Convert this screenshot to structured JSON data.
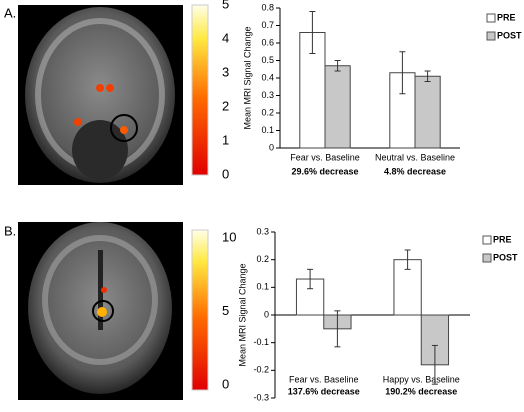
{
  "chart_data": [
    {
      "type": "bar",
      "panel_label": "A.",
      "y_label": "Mean MRI Signal Change",
      "categories": [
        "Fear vs. Baseline",
        "Neutral vs. Baseline"
      ],
      "category_notes": [
        "29.6% decrease",
        "4.8% decrease"
      ],
      "series": [
        {
          "name": "PRE",
          "color": "#ffffff",
          "values": [
            0.66,
            0.43
          ],
          "errors": [
            0.12,
            0.12
          ]
        },
        {
          "name": "POST",
          "color": "#c8c8c8",
          "values": [
            0.47,
            0.41
          ],
          "errors": [
            0.03,
            0.03
          ]
        }
      ],
      "ylim": [
        0,
        0.8
      ],
      "yticks": [
        0,
        0.1,
        0.2,
        0.3,
        0.4,
        0.5,
        0.6,
        0.7,
        0.8
      ],
      "colorbar_ticks": [
        0,
        1,
        2,
        3,
        4,
        5
      ]
    },
    {
      "type": "bar",
      "panel_label": "B.",
      "y_label": "Mean MRI Signal Change",
      "categories": [
        "Fear vs. Baseline",
        "Happy vs. Baseline"
      ],
      "category_notes": [
        "137.6% decrease",
        "190.2% decrease"
      ],
      "series": [
        {
          "name": "PRE",
          "color": "#ffffff",
          "values": [
            0.13,
            0.2
          ],
          "errors": [
            0.035,
            0.035
          ]
        },
        {
          "name": "POST",
          "color": "#c8c8c8",
          "values": [
            -0.05,
            -0.18
          ],
          "errors": [
            0.065,
            0.07
          ]
        }
      ],
      "ylim": [
        -0.3,
        0.3
      ],
      "yticks": [
        -0.3,
        -0.2,
        -0.1,
        0,
        0.1,
        0.2,
        0.3
      ],
      "colorbar_ticks": [
        0,
        5,
        10
      ]
    }
  ]
}
